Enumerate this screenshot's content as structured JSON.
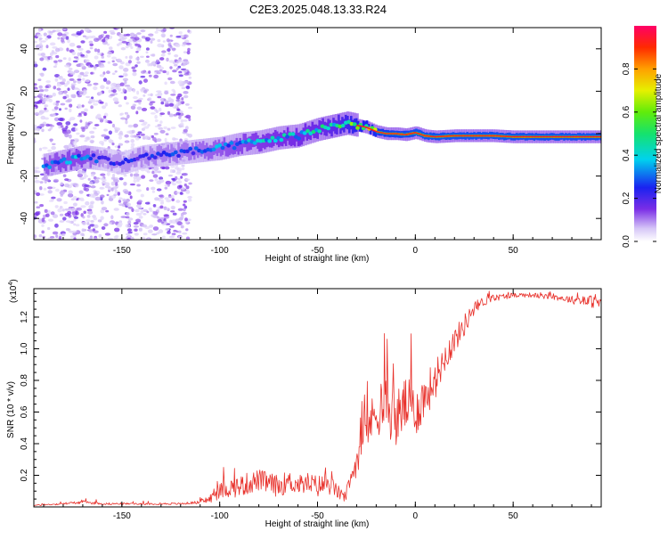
{
  "title": "C2E3.2025.048.13.33.R24",
  "colors": {
    "snr_line": "#e8302a",
    "axis": "#000000",
    "background": "#ffffff"
  },
  "chart_data": [
    {
      "type": "heatmap",
      "name": "spectrogram",
      "xlabel": "Height of straight line (km)",
      "ylabel": "Frequency (Hz)",
      "xlim": [
        -195,
        95
      ],
      "ylim": [
        -50,
        50
      ],
      "x_ticks": [
        -150,
        -100,
        -50,
        0,
        50
      ],
      "y_ticks": [
        -40,
        -20,
        0,
        20,
        40
      ],
      "x_tick_labels": [
        "-150",
        "-100",
        "-50",
        "0",
        "50"
      ],
      "y_tick_labels": [
        "-40",
        "-20",
        "0",
        "20",
        "40"
      ],
      "noise_region_x": [
        -195,
        -115
      ],
      "ridge": {
        "x": [
          -190,
          -180,
          -170,
          -160,
          -150,
          -140,
          -130,
          -120,
          -110,
          -100,
          -90,
          -80,
          -70,
          -60,
          -50,
          -45,
          -40,
          -35,
          -30,
          -25,
          -20,
          -15,
          -10,
          -5,
          0,
          5,
          10,
          20,
          30,
          40,
          50,
          60,
          70,
          80,
          90,
          95
        ],
        "y": [
          -15,
          -13,
          -11,
          -12,
          -14,
          -11,
          -10,
          -9,
          -8,
          -7,
          -5,
          -4,
          -2,
          -1,
          2,
          3,
          4,
          5,
          4,
          3,
          1,
          0,
          0,
          -0.5,
          0.5,
          -1,
          -1.5,
          -1,
          -1,
          -1,
          -1.5,
          -1.5,
          -1.5,
          -1.5,
          -1.5,
          -1.5
        ],
        "amplitude": [
          0.4,
          0.45,
          0.45,
          0.3,
          0.3,
          0.32,
          0.35,
          0.35,
          0.38,
          0.42,
          0.45,
          0.48,
          0.5,
          0.52,
          0.55,
          0.58,
          0.62,
          0.7,
          0.78,
          0.82,
          0.88,
          0.9,
          0.92,
          0.92,
          0.95,
          0.95,
          0.95,
          0.95,
          0.95,
          0.95,
          0.95,
          0.95,
          0.95,
          0.95,
          0.95,
          0.95
        ]
      },
      "colorbar": {
        "label": "Normalized spectral amplitude",
        "range": [
          0,
          1
        ],
        "ticks": [
          0.0,
          0.2,
          0.4,
          0.6,
          0.8
        ],
        "tick_labels": [
          "0.0",
          "0.2",
          "0.4",
          "0.6",
          "0.8"
        ],
        "colormap": "rainbow"
      }
    },
    {
      "type": "line",
      "name": "snr",
      "xlabel": "Height of straight line (km)",
      "ylabel": "SNR (10 * v/v)",
      "exponent_label": "(x10",
      "exponent_value": "4",
      "xlim": [
        -195,
        95
      ],
      "ylim": [
        0,
        1.38
      ],
      "x_ticks": [
        -150,
        -100,
        -50,
        0,
        50
      ],
      "y_ticks": [
        0.2,
        0.4,
        0.6,
        0.8,
        1.0,
        1.2
      ],
      "x_tick_labels": [
        "-150",
        "-100",
        "-50",
        "0",
        "50"
      ],
      "y_tick_labels": [
        "0.2",
        "0.4",
        "0.6",
        "0.8",
        "1.0",
        "1.2"
      ],
      "series": [
        {
          "name": "SNR",
          "x": [
            -195,
            -180,
            -170,
            -160,
            -140,
            -120,
            -110,
            -105,
            -100,
            -95,
            -90,
            -85,
            -80,
            -75,
            -70,
            -65,
            -60,
            -55,
            -50,
            -45,
            -40,
            -37,
            -35,
            -30,
            -25,
            -22,
            -20,
            -15,
            -10,
            -5,
            0,
            5,
            10,
            15,
            20,
            25,
            30,
            35,
            40,
            45,
            50,
            55,
            60,
            65,
            70,
            75,
            80,
            85,
            90,
            95
          ],
          "y": [
            0.01,
            0.02,
            0.03,
            0.02,
            0.02,
            0.02,
            0.03,
            0.05,
            0.1,
            0.12,
            0.13,
            0.15,
            0.17,
            0.15,
            0.13,
            0.16,
            0.14,
            0.15,
            0.13,
            0.15,
            0.1,
            0.06,
            0.08,
            0.3,
            0.5,
            0.55,
            0.6,
            0.65,
            0.55,
            0.65,
            0.6,
            0.7,
            0.8,
            0.95,
            1.05,
            1.15,
            1.25,
            1.3,
            1.32,
            1.33,
            1.34,
            1.34,
            1.34,
            1.33,
            1.33,
            1.32,
            1.31,
            1.3,
            1.3,
            1.28
          ],
          "noise": [
            0.004,
            0.006,
            0.01,
            0.006,
            0.006,
            0.006,
            0.01,
            0.03,
            0.05,
            0.06,
            0.07,
            0.07,
            0.07,
            0.07,
            0.07,
            0.07,
            0.06,
            0.07,
            0.07,
            0.07,
            0.05,
            0.03,
            0.05,
            0.1,
            0.12,
            0.15,
            0.16,
            0.18,
            0.18,
            0.18,
            0.16,
            0.15,
            0.12,
            0.1,
            0.08,
            0.07,
            0.05,
            0.03,
            0.02,
            0.02,
            0.015,
            0.015,
            0.015,
            0.015,
            0.02,
            0.02,
            0.025,
            0.03,
            0.04,
            0.04
          ]
        }
      ]
    }
  ]
}
